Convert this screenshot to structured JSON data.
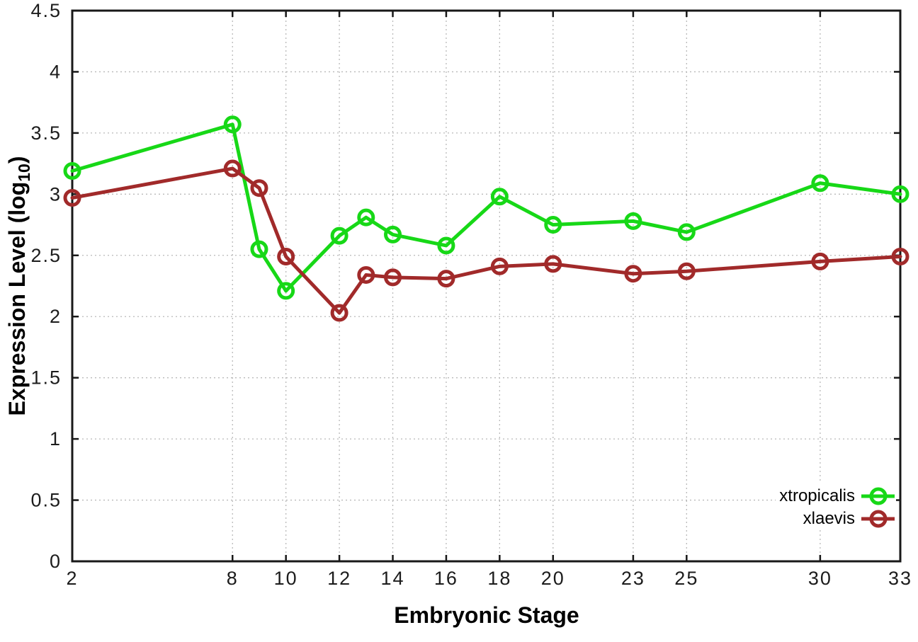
{
  "chart_data": {
    "type": "line",
    "title": "",
    "xlabel": "Embryonic Stage",
    "ylabel": "Expression Level (log10)",
    "ylabel_parts": {
      "prefix": "Expression Level (log",
      "sub": "10",
      "suffix": ")"
    },
    "xlim": [
      2,
      33
    ],
    "ylim": [
      0,
      4.5
    ],
    "x_tick_values": [
      2,
      8,
      10,
      12,
      14,
      16,
      18,
      20,
      23,
      25,
      30,
      33
    ],
    "x_tick_labels": [
      "2",
      "8",
      "10",
      "12",
      "14",
      "16",
      "18",
      "20",
      "23",
      "25",
      "30",
      "33"
    ],
    "y_tick_values": [
      0,
      0.5,
      1,
      1.5,
      2,
      2.5,
      3,
      3.5,
      4,
      4.5
    ],
    "y_tick_labels": [
      "0",
      "0.5",
      "1",
      "1.5",
      "2",
      "2.5",
      "3",
      "3.5",
      "4",
      "4.5"
    ],
    "grid": true,
    "legend_position": "bottom-right-inside",
    "x": [
      2,
      8,
      9,
      10,
      12,
      13,
      14,
      16,
      18,
      20,
      23,
      25,
      30,
      33
    ],
    "series": [
      {
        "name": "xtropicalis",
        "color": "#17d817",
        "marker": "open-circle",
        "values": [
          3.19,
          3.57,
          2.55,
          2.21,
          2.66,
          2.81,
          2.67,
          2.58,
          2.98,
          2.75,
          2.78,
          2.69,
          3.09,
          3.0
        ]
      },
      {
        "name": "xlaevis",
        "color": "#a12a2a",
        "marker": "open-circle",
        "values": [
          2.97,
          3.21,
          3.05,
          2.49,
          2.03,
          2.34,
          2.32,
          2.31,
          2.41,
          2.43,
          2.35,
          2.37,
          2.45,
          2.49
        ]
      }
    ],
    "colors": {
      "background": "#ffffff",
      "border": "#181818",
      "grid": "#b9b9b9",
      "tick_text": "#1c1c1c"
    }
  }
}
